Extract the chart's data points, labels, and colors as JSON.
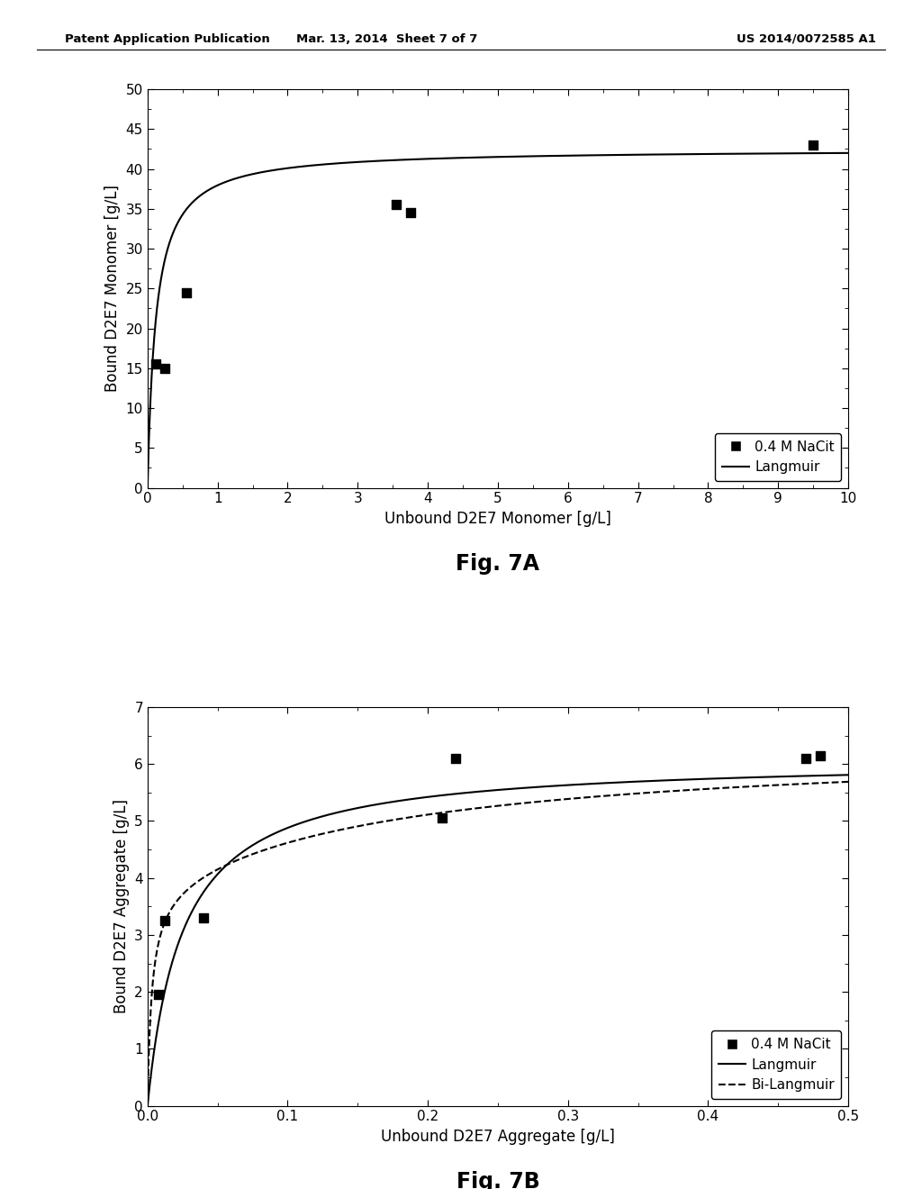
{
  "fig7a": {
    "scatter_x": [
      0.12,
      0.25,
      0.55,
      3.55,
      3.75,
      9.5
    ],
    "scatter_y": [
      15.5,
      15.0,
      24.5,
      35.5,
      34.5,
      43.0
    ],
    "langmuir_qmax": 42.5,
    "langmuir_kd": 0.12,
    "xlim": [
      0,
      10
    ],
    "ylim": [
      0,
      50
    ],
    "xticks": [
      0,
      1,
      2,
      3,
      4,
      5,
      6,
      7,
      8,
      9,
      10
    ],
    "yticks": [
      0,
      5,
      10,
      15,
      20,
      25,
      30,
      35,
      40,
      45,
      50
    ],
    "xlabel": "Unbound D2E7 Monomer [g/L]",
    "ylabel": "Bound D2E7 Monomer [g/L]",
    "caption": "Fig. 7A",
    "legend_labels": [
      "0.4 M NaCit",
      "Langmuir"
    ]
  },
  "fig7b": {
    "scatter_x": [
      0.008,
      0.012,
      0.04,
      0.21,
      0.22,
      0.47,
      0.48
    ],
    "scatter_y": [
      1.95,
      3.25,
      3.3,
      5.05,
      6.1,
      6.1,
      6.15
    ],
    "langmuir_qmax": 6.1,
    "langmuir_kd": 0.025,
    "bilangmuir_q1": 3.8,
    "bilangmuir_kd1": 0.003,
    "bilangmuir_q2": 2.6,
    "bilangmuir_kd2": 0.18,
    "xlim": [
      0,
      0.5
    ],
    "ylim": [
      0,
      7
    ],
    "xticks": [
      0.0,
      0.1,
      0.2,
      0.3,
      0.4,
      0.5
    ],
    "yticks": [
      0,
      1,
      2,
      3,
      4,
      5,
      6,
      7
    ],
    "xlabel": "Unbound D2E7 Aggregate [g/L]",
    "ylabel": "Bound D2E7 Aggregate [g/L]",
    "caption": "Fig. 7B",
    "legend_labels": [
      "0.4 M NaCit",
      "Langmuir",
      "Bi-Langmuir"
    ]
  },
  "header_left": "Patent Application Publication",
  "header_center": "Mar. 13, 2014  Sheet 7 of 7",
  "header_right": "US 2014/0072585 A1",
  "bg_color": "#ffffff",
  "line_color": "#000000",
  "scatter_color": "#000000",
  "scatter_size": 50
}
